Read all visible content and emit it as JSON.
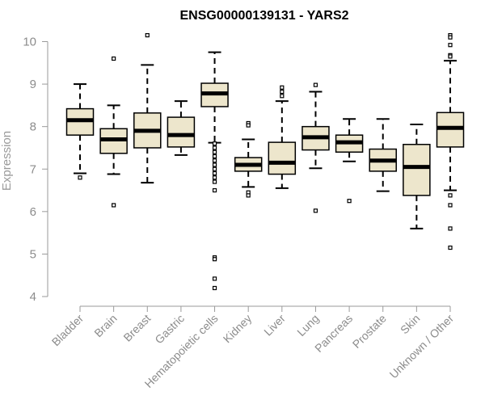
{
  "chart_data": {
    "type": "box",
    "title": "ENSG00000139131 - YARS2",
    "xlabel": "",
    "ylabel": "Expression",
    "ylim": [
      4,
      10
    ],
    "yticks": [
      4,
      5,
      6,
      7,
      8,
      9,
      10
    ],
    "colors": {
      "box_fill": "#ede6cc",
      "box_stroke": "#000000",
      "median": "#000000"
    },
    "categories": [
      "Bladder",
      "Brain",
      "Breast",
      "Gastric",
      "Hematopoietic cells",
      "Kidney",
      "Liver",
      "Lung",
      "Pancreas",
      "Prostate",
      "Skin",
      "Unknown / Other"
    ],
    "boxes": [
      {
        "name": "Bladder",
        "whisker_low": 6.9,
        "q1": 7.8,
        "median": 8.15,
        "q3": 8.42,
        "whisker_high": 9.0,
        "outliers": [
          6.8
        ]
      },
      {
        "name": "Brain",
        "whisker_low": 6.88,
        "q1": 7.37,
        "median": 7.7,
        "q3": 7.95,
        "whisker_high": 8.5,
        "outliers": [
          9.6,
          6.15
        ]
      },
      {
        "name": "Breast",
        "whisker_low": 6.68,
        "q1": 7.5,
        "median": 7.9,
        "q3": 8.32,
        "whisker_high": 9.45,
        "outliers": [
          10.15
        ]
      },
      {
        "name": "Gastric",
        "whisker_low": 7.33,
        "q1": 7.52,
        "median": 7.8,
        "q3": 8.22,
        "whisker_high": 8.6,
        "outliers": []
      },
      {
        "name": "Hematopoietic cells",
        "whisker_low": 7.62,
        "q1": 8.47,
        "median": 8.78,
        "q3": 9.02,
        "whisker_high": 9.75,
        "outliers": [
          7.6,
          7.5,
          7.4,
          7.3,
          7.2,
          7.1,
          7.0,
          6.9,
          6.8,
          6.7,
          6.5,
          4.92,
          4.88,
          4.42,
          4.2
        ]
      },
      {
        "name": "Kidney",
        "whisker_low": 6.58,
        "q1": 6.95,
        "median": 7.1,
        "q3": 7.27,
        "whisker_high": 7.7,
        "outliers": [
          8.08,
          8.03,
          6.45,
          6.38
        ]
      },
      {
        "name": "Liver",
        "whisker_low": 6.55,
        "q1": 6.88,
        "median": 7.15,
        "q3": 7.63,
        "whisker_high": 8.6,
        "outliers": [
          8.92,
          8.82,
          8.72
        ]
      },
      {
        "name": "Lung",
        "whisker_low": 7.02,
        "q1": 7.45,
        "median": 7.75,
        "q3": 8.0,
        "whisker_high": 8.82,
        "outliers": [
          8.98,
          6.02
        ]
      },
      {
        "name": "Pancreas",
        "whisker_low": 7.18,
        "q1": 7.4,
        "median": 7.63,
        "q3": 7.8,
        "whisker_high": 8.18,
        "outliers": [
          6.25
        ]
      },
      {
        "name": "Prostate",
        "whisker_low": 6.48,
        "q1": 6.95,
        "median": 7.2,
        "q3": 7.47,
        "whisker_high": 8.18,
        "outliers": []
      },
      {
        "name": "Skin",
        "whisker_low": 5.6,
        "q1": 6.38,
        "median": 7.05,
        "q3": 7.58,
        "whisker_high": 8.05,
        "outliers": []
      },
      {
        "name": "Unknown / Other",
        "whisker_low": 6.5,
        "q1": 7.52,
        "median": 7.97,
        "q3": 8.33,
        "whisker_high": 9.55,
        "outliers": [
          10.15,
          10.1,
          9.92,
          9.68,
          9.65,
          6.38,
          6.15,
          5.6,
          5.15
        ]
      }
    ]
  }
}
